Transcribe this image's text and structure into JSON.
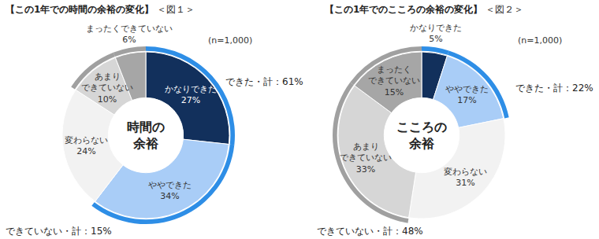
{
  "chart_data": [
    {
      "type": "pie",
      "title": "【この1年での時間の余裕の変化】",
      "subtitle": "＜図１＞",
      "center_label": "時間の余裕",
      "note": "(n=1,000)",
      "annotations": [
        "できた・計：61%",
        "できていない・計：15%"
      ],
      "categories": [
        "かなりできた",
        "ややできた",
        "変わらない",
        "あまりできていない",
        "まったくできていない"
      ],
      "values": [
        27,
        34,
        24,
        10,
        6
      ],
      "value_labels": [
        "27%",
        "34%",
        "24%",
        "10%",
        "6%"
      ],
      "colors": [
        "#12305c",
        "#a9cdf7",
        "#f2f2f2",
        "#d6d6d6",
        "#a6a6a6"
      ],
      "data_labels": true
    },
    {
      "type": "pie",
      "title": "【この1年でのこころの余裕の変化】",
      "subtitle": "＜図２＞",
      "center_label": "こころの余裕",
      "note": "(n=1,000)",
      "annotations": [
        "できた・計：22%",
        "できていない・計：48%"
      ],
      "categories": [
        "かなりできた",
        "ややできた",
        "変わらない",
        "あまりできていない",
        "まったくできていない"
      ],
      "values": [
        5,
        17,
        31,
        33,
        15
      ],
      "value_labels": [
        "5%",
        "17%",
        "31%",
        "33%",
        "15%"
      ],
      "colors": [
        "#12305c",
        "#a9cdf7",
        "#f2f2f2",
        "#d6d6d6",
        "#a6a6a6"
      ],
      "data_labels": true
    }
  ]
}
